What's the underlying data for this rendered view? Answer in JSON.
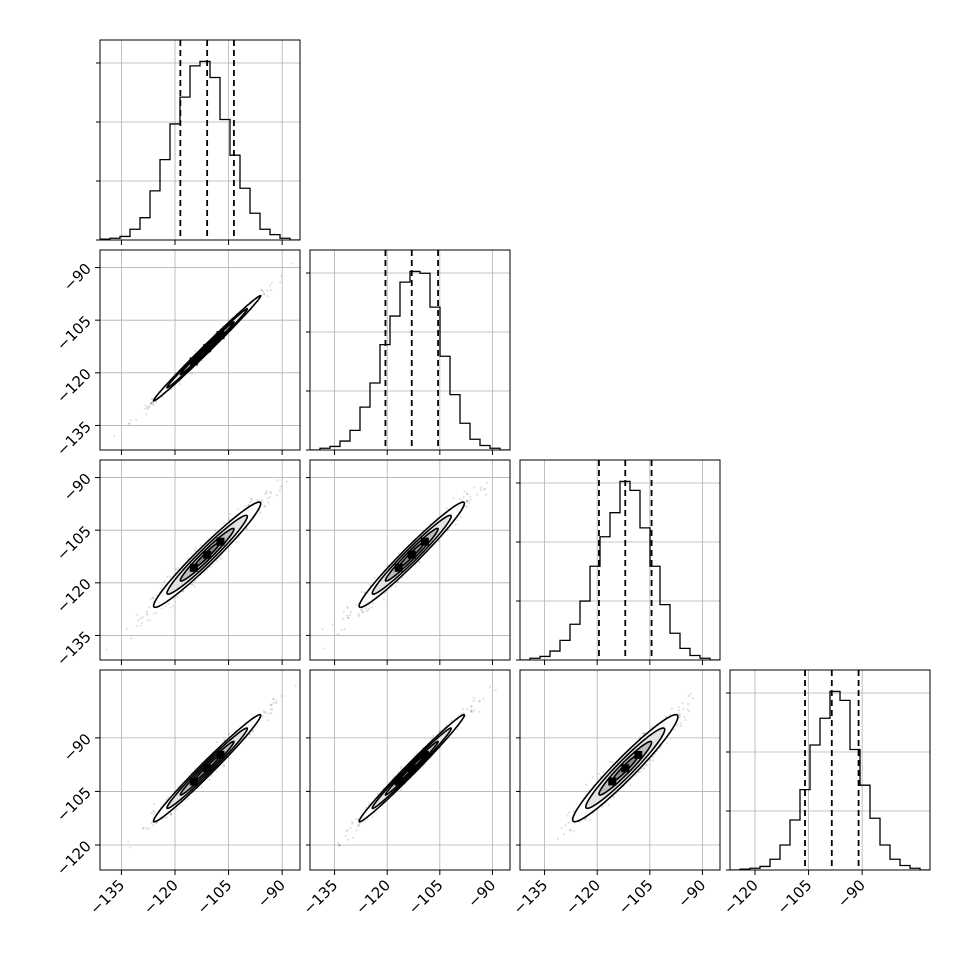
{
  "figure": {
    "background": "#ffffff",
    "grid_color": "#b0b0b0",
    "line_color": "#000000"
  },
  "chart_data": {
    "type": "corner",
    "n_params": 4,
    "grid": true,
    "param_ranges": [
      [
        -141,
        -85
      ],
      [
        -142,
        -85
      ],
      [
        -142,
        -85
      ],
      [
        -127,
        -71
      ]
    ],
    "x_ticks": [
      [
        -135,
        -120,
        -105,
        -90
      ],
      [
        -135,
        -120,
        -105,
        -90
      ],
      [
        -135,
        -120,
        -105,
        -90
      ],
      [
        -120,
        -105,
        -90
      ]
    ],
    "y_ticks": [
      [],
      [
        -90,
        -105,
        -120,
        -135
      ],
      [
        -90,
        -105,
        -120,
        -135
      ],
      [
        -90,
        -105,
        -120
      ]
    ],
    "histograms": [
      {
        "bin_edges": [
          -141,
          -138.2,
          -135.4,
          -132.6,
          -129.8,
          -127,
          -124.2,
          -121.4,
          -118.6,
          -115.8,
          -113,
          -110.2,
          -107.4,
          -104.6,
          -101.8,
          -99,
          -96.2,
          -93.4,
          -90.6,
          -87.8,
          -85
        ],
        "counts": [
          1,
          2,
          4,
          12,
          25,
          55,
          90,
          130,
          160,
          195,
          200,
          182,
          135,
          95,
          58,
          30,
          12,
          6,
          2,
          0
        ],
        "quantiles": [
          -118.5,
          -111.0,
          -103.5
        ]
      },
      {
        "bin_edges": [
          -142,
          -139.15,
          -136.3,
          -133.45,
          -130.6,
          -127.75,
          -124.9,
          -122.05,
          -119.2,
          -116.35,
          -113.5,
          -110.65,
          -107.8,
          -104.95,
          -102.1,
          -99.25,
          -96.4,
          -93.55,
          -90.7,
          -87.85,
          -85
        ],
        "counts": [
          0,
          2,
          4,
          10,
          22,
          48,
          75,
          118,
          150,
          188,
          200,
          198,
          160,
          105,
          62,
          30,
          12,
          5,
          2,
          0
        ],
        "quantiles": [
          -120.5,
          -113.0,
          -105.5
        ]
      },
      {
        "bin_edges": [
          -142,
          -139.15,
          -136.3,
          -133.45,
          -130.6,
          -127.75,
          -124.9,
          -122.05,
          -119.2,
          -116.35,
          -113.5,
          -110.65,
          -107.8,
          -104.95,
          -102.1,
          -99.25,
          -96.4,
          -93.55,
          -90.7,
          -87.85,
          -85
        ],
        "counts": [
          0,
          2,
          4,
          10,
          22,
          40,
          66,
          105,
          138,
          165,
          200,
          190,
          148,
          105,
          62,
          30,
          13,
          5,
          2,
          0
        ],
        "quantiles": [
          -119.5,
          -112.0,
          -104.5
        ]
      },
      {
        "bin_edges": [
          -127,
          -124.2,
          -121.4,
          -118.6,
          -115.8,
          -113,
          -110.2,
          -107.4,
          -104.6,
          -101.8,
          -99,
          -96.2,
          -93.4,
          -90.6,
          -87.8,
          -85,
          -82.2,
          -79.4,
          -76.6,
          -73.8,
          -71
        ],
        "counts": [
          0,
          1,
          2,
          4,
          12,
          28,
          56,
          90,
          140,
          170,
          200,
          190,
          135,
          95,
          58,
          28,
          12,
          5,
          2,
          0
        ],
        "quantiles": [
          -106.0,
          -98.5,
          -91.0
        ]
      }
    ],
    "pairs": [
      {
        "x": 0,
        "y": 1,
        "center": [
          -111,
          -113
        ],
        "sd": [
          7.5,
          7.5
        ],
        "rho": 0.995
      },
      {
        "x": 0,
        "y": 2,
        "center": [
          -111,
          -112
        ],
        "sd": [
          7.5,
          7.5
        ],
        "rho": 0.97
      },
      {
        "x": 1,
        "y": 2,
        "center": [
          -113,
          -112
        ],
        "sd": [
          7.5,
          7.5
        ],
        "rho": 0.975
      },
      {
        "x": 0,
        "y": 3,
        "center": [
          -111,
          -98.5
        ],
        "sd": [
          7.5,
          7.5
        ],
        "rho": 0.985
      },
      {
        "x": 1,
        "y": 3,
        "center": [
          -113,
          -98.5
        ],
        "sd": [
          7.5,
          7.5
        ],
        "rho": 0.99
      },
      {
        "x": 2,
        "y": 3,
        "center": [
          -112,
          -98.5
        ],
        "sd": [
          7.5,
          7.5
        ],
        "rho": 0.96
      }
    ],
    "contour_levels_sigma": [
      0.5,
      1.0,
      1.5,
      2.0
    ]
  }
}
